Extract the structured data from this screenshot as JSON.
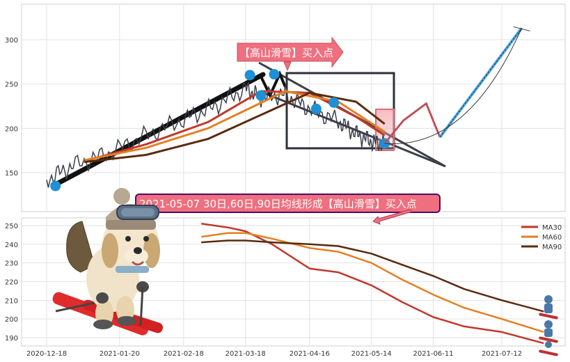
{
  "bottom_banner": "2021-05-07 30日,60日,90日均线形成【高山滑雪】买入点",
  "top_callout": "【高山滑雪】买入点",
  "colors": {
    "ma30": "#c0392b",
    "ma60": "#e67e22",
    "ma90": "#5a2a0e",
    "price": "#3a3f4a",
    "marker": "#1f8fd6",
    "banner_fill": "#ef6f7e",
    "banner_border": "#4b0a6b",
    "box": "#2c3038",
    "projection": "#d3545e",
    "forecast": "#4aa3df"
  },
  "chart_data": [
    {
      "type": "line",
      "panel": "price",
      "x_ticks": [
        "2020-12-18",
        "2021-01-20",
        "2021-02-18",
        "2021-03-18",
        "2021-04-16",
        "2021-05-14",
        "2021-06-11",
        "2021-07-12"
      ],
      "y_ticks": [
        150,
        200,
        250,
        300
      ],
      "ylim": [
        105,
        340
      ],
      "grid": true,
      "series": [
        {
          "key": "price",
          "x": [
            "2020-12-18",
            "2020-12-30",
            "2021-01-15",
            "2021-02-01",
            "2021-02-18",
            "2021-03-04",
            "2021-03-18",
            "2021-03-25",
            "2021-04-05",
            "2021-04-16",
            "2021-04-29",
            "2021-05-07",
            "2021-05-14",
            "2021-05-20"
          ],
          "values": [
            142,
            158,
            172,
            192,
            210,
            225,
            245,
            235,
            238,
            222,
            208,
            194,
            185,
            182
          ]
        },
        {
          "key": "ma30",
          "x": [
            "2021-01-04",
            "2021-02-01",
            "2021-03-01",
            "2021-03-25",
            "2021-04-16",
            "2021-05-07",
            "2021-05-20"
          ],
          "values": [
            163,
            182,
            207,
            242,
            240,
            213,
            192
          ]
        },
        {
          "key": "ma60",
          "x": [
            "2021-01-04",
            "2021-02-01",
            "2021-03-01",
            "2021-04-05",
            "2021-04-29",
            "2021-05-20"
          ],
          "values": [
            164,
            178,
            200,
            242,
            230,
            196
          ]
        },
        {
          "key": "ma90",
          "x": [
            "2021-01-04",
            "2021-02-01",
            "2021-03-01",
            "2021-04-16",
            "2021-05-07",
            "2021-05-20"
          ],
          "values": [
            162,
            170,
            188,
            240,
            230,
            205
          ]
        }
      ],
      "markers": [
        {
          "x": "2020-12-22",
          "y": 135
        },
        {
          "x": "2021-03-20",
          "y": 260
        },
        {
          "x": "2021-03-25",
          "y": 237
        },
        {
          "x": "2021-03-31",
          "y": 261
        },
        {
          "x": "2021-04-19",
          "y": 222
        },
        {
          "x": "2021-04-27",
          "y": 229
        },
        {
          "x": "2021-05-20",
          "y": 183
        }
      ],
      "forecast": {
        "x": [
          "2021-06-14",
          "2021-07-21"
        ],
        "values": [
          190,
          313
        ]
      }
    },
    {
      "type": "line",
      "panel": "moving-averages",
      "x_ticks": [
        "2020-12-18",
        "2021-01-20",
        "2021-02-18",
        "2021-03-18",
        "2021-04-16",
        "2021-05-14",
        "2021-06-11",
        "2021-07-12"
      ],
      "y_ticks": [
        190,
        200,
        210,
        220,
        230,
        240,
        250
      ],
      "ylim": [
        185,
        254
      ],
      "grid": true,
      "legend_position": "top-right",
      "series": [
        {
          "key": "ma30",
          "name": "MA30",
          "x": [
            "2021-02-26",
            "2021-03-10",
            "2021-03-18",
            "2021-03-30",
            "2021-04-16",
            "2021-04-29",
            "2021-05-14",
            "2021-05-28",
            "2021-06-11",
            "2021-06-25",
            "2021-07-12",
            "2021-07-31"
          ],
          "values": [
            251,
            249,
            247,
            240,
            227,
            225,
            218,
            209,
            201,
            196,
            193,
            187
          ]
        },
        {
          "key": "ma60",
          "name": "MA60",
          "x": [
            "2021-02-26",
            "2021-03-10",
            "2021-03-18",
            "2021-03-30",
            "2021-04-16",
            "2021-04-29",
            "2021-05-14",
            "2021-05-28",
            "2021-06-11",
            "2021-06-25",
            "2021-07-12",
            "2021-07-31"
          ],
          "values": [
            244,
            246,
            246,
            243,
            238,
            236,
            230,
            221,
            213,
            206,
            200,
            193
          ]
        },
        {
          "key": "ma90",
          "name": "MA90",
          "x": [
            "2021-02-26",
            "2021-03-10",
            "2021-03-18",
            "2021-03-30",
            "2021-04-16",
            "2021-04-29",
            "2021-05-14",
            "2021-05-28",
            "2021-06-11",
            "2021-06-25",
            "2021-07-12",
            "2021-07-31"
          ],
          "values": [
            241,
            242,
            242,
            241,
            240,
            239,
            235,
            229,
            223,
            216,
            210,
            204
          ]
        }
      ]
    }
  ]
}
